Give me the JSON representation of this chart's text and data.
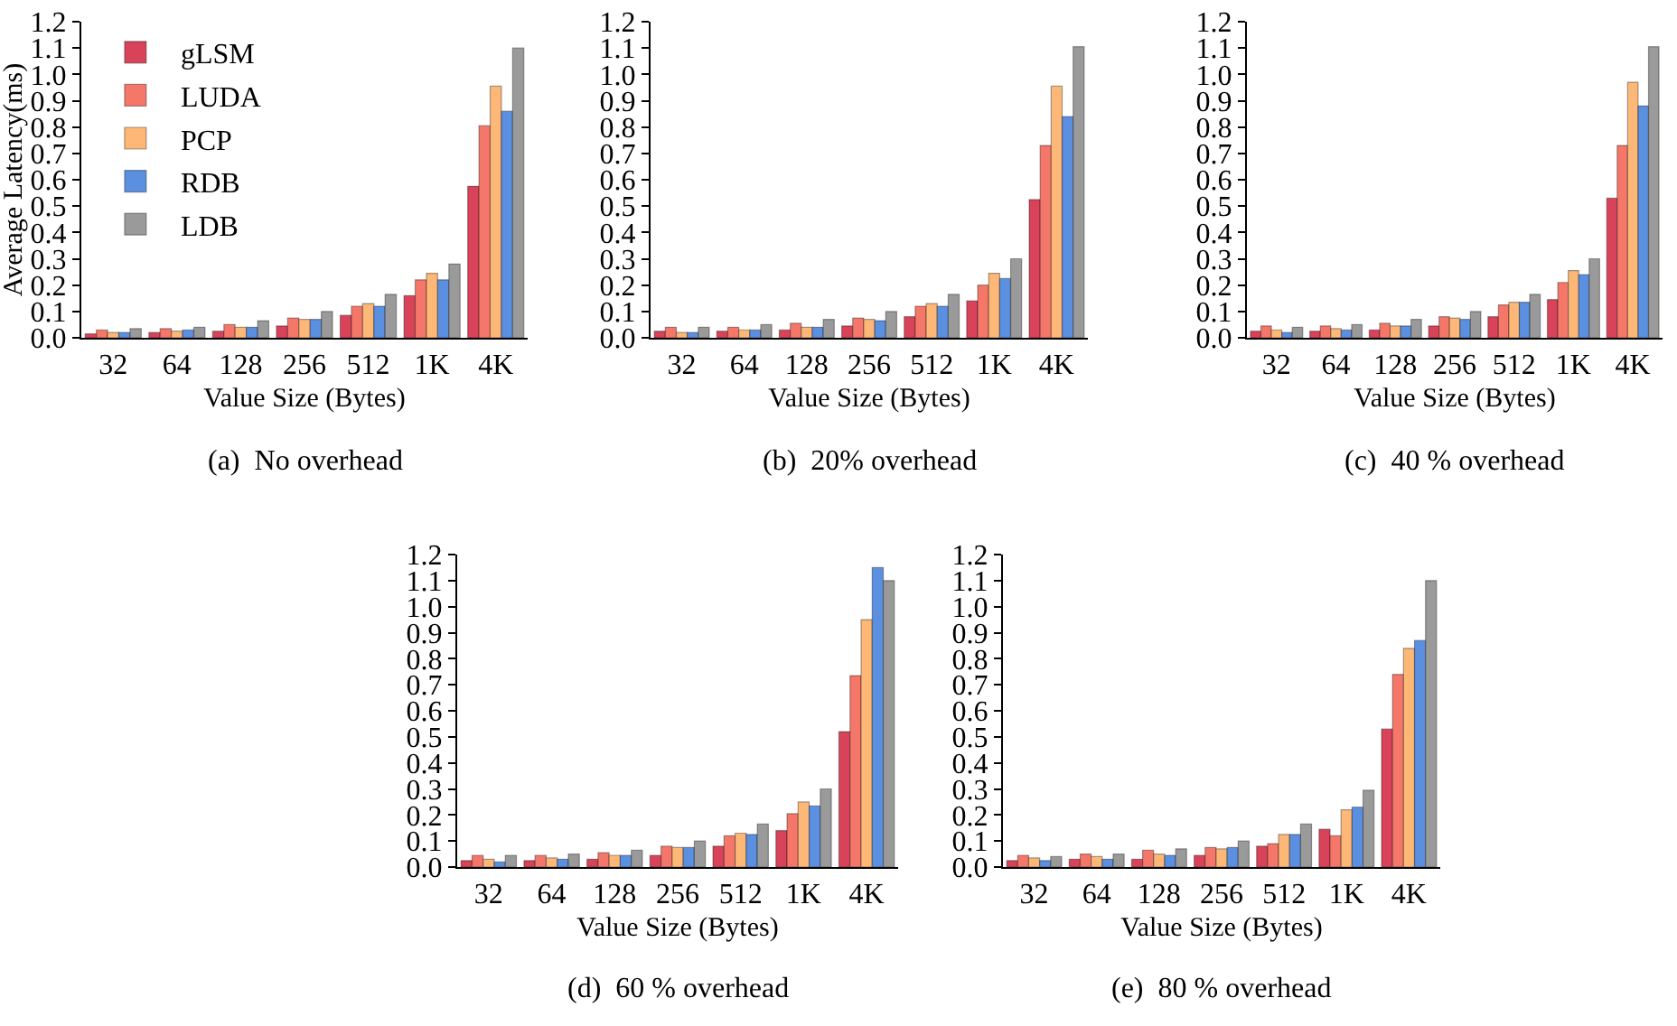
{
  "chart_data": [
    {
      "type": "bar",
      "title": "(a)  No overhead",
      "xlabel": "Value Size (Bytes)",
      "ylabel": "Average Latency(ms)",
      "categories": [
        "32",
        "64",
        "128",
        "256",
        "512",
        "1K",
        "4K"
      ],
      "ylim": [
        0,
        1.2
      ],
      "yticks": [
        {
          "value": 0,
          "label": "0.0"
        },
        {
          "value": 0.1,
          "label": "0.1"
        },
        {
          "value": 0.2,
          "label": "0.2"
        },
        {
          "value": 0.3,
          "label": "0.3"
        },
        {
          "value": 0.4,
          "label": "0.4"
        },
        {
          "value": 0.5,
          "label": "0.5"
        },
        {
          "value": 0.6,
          "label": "0.6"
        },
        {
          "value": 0.7,
          "label": "0.7"
        },
        {
          "value": 0.8,
          "label": "0.8"
        },
        {
          "value": 0.9,
          "label": "0.9"
        },
        {
          "value": 1,
          "label": "1.0"
        },
        {
          "value": 1.1,
          "label": "1.1"
        },
        {
          "value": 1.2,
          "label": "1.2"
        }
      ],
      "legend": "top left",
      "grid": false,
      "series": [
        {
          "name": "gLSM",
          "color": "#d9435a",
          "values": [
            0.015,
            0.02,
            0.025,
            0.045,
            0.085,
            0.16,
            0.575
          ]
        },
        {
          "name": "LUDA",
          "color": "#f4776a",
          "values": [
            0.03,
            0.035,
            0.05,
            0.075,
            0.12,
            0.22,
            0.805
          ]
        },
        {
          "name": "PCP",
          "color": "#fdb878",
          "values": [
            0.02,
            0.025,
            0.04,
            0.07,
            0.13,
            0.245,
            0.955
          ]
        },
        {
          "name": "RDB",
          "color": "#5b8fe0",
          "values": [
            0.02,
            0.03,
            0.04,
            0.07,
            0.12,
            0.22,
            0.86
          ]
        },
        {
          "name": "LDB",
          "color": "#9a9a9a",
          "values": [
            0.035,
            0.04,
            0.065,
            0.1,
            0.165,
            0.28,
            1.1
          ]
        }
      ]
    },
    {
      "type": "bar",
      "title": "(b)  20% overhead",
      "xlabel": "Value Size (Bytes)",
      "categories": [
        "32",
        "64",
        "128",
        "256",
        "512",
        "1K",
        "4K"
      ],
      "ylim": [
        0,
        1.2
      ],
      "yticks": [
        {
          "value": 0,
          "label": "0.0"
        },
        {
          "value": 0.1,
          "label": "0.1"
        },
        {
          "value": 0.2,
          "label": "0.2"
        },
        {
          "value": 0.3,
          "label": "0.3"
        },
        {
          "value": 0.4,
          "label": "0.4"
        },
        {
          "value": 0.5,
          "label": "0.5"
        },
        {
          "value": 0.6,
          "label": "0.6"
        },
        {
          "value": 0.7,
          "label": "0.7"
        },
        {
          "value": 0.8,
          "label": "0.8"
        },
        {
          "value": 0.9,
          "label": "0.9"
        },
        {
          "value": 1,
          "label": "1.0"
        },
        {
          "value": 1.1,
          "label": "1.1"
        },
        {
          "value": 1.2,
          "label": "1.2"
        }
      ],
      "legend": false,
      "grid": false,
      "series": [
        {
          "color": "#d9435a",
          "values": [
            0.025,
            0.025,
            0.03,
            0.045,
            0.08,
            0.14,
            0.525
          ]
        },
        {
          "color": "#f4776a",
          "values": [
            0.04,
            0.04,
            0.055,
            0.075,
            0.12,
            0.2,
            0.73
          ]
        },
        {
          "color": "#fdb878",
          "values": [
            0.02,
            0.03,
            0.04,
            0.07,
            0.13,
            0.245,
            0.955
          ]
        },
        {
          "color": "#5b8fe0",
          "values": [
            0.02,
            0.03,
            0.04,
            0.065,
            0.12,
            0.225,
            0.84
          ]
        },
        {
          "color": "#9a9a9a",
          "values": [
            0.04,
            0.05,
            0.07,
            0.1,
            0.165,
            0.3,
            1.105
          ]
        }
      ]
    },
    {
      "type": "bar",
      "title": "(c)  40 % overhead",
      "xlabel": "Value Size (Bytes)",
      "categories": [
        "32",
        "64",
        "128",
        "256",
        "512",
        "1K",
        "4K"
      ],
      "ylim": [
        0,
        1.2
      ],
      "yticks": [
        {
          "value": 0,
          "label": "0.0"
        },
        {
          "value": 0.1,
          "label": "0.1"
        },
        {
          "value": 0.2,
          "label": "0.2"
        },
        {
          "value": 0.3,
          "label": "0.3"
        },
        {
          "value": 0.4,
          "label": "0.4"
        },
        {
          "value": 0.5,
          "label": "0.5"
        },
        {
          "value": 0.6,
          "label": "0.6"
        },
        {
          "value": 0.7,
          "label": "0.7"
        },
        {
          "value": 0.8,
          "label": "0.8"
        },
        {
          "value": 0.9,
          "label": "0.9"
        },
        {
          "value": 1,
          "label": "1.0"
        },
        {
          "value": 1.1,
          "label": "1.1"
        },
        {
          "value": 1.2,
          "label": "1.2"
        }
      ],
      "legend": false,
      "grid": false,
      "series": [
        {
          "color": "#d9435a",
          "values": [
            0.025,
            0.025,
            0.03,
            0.045,
            0.08,
            0.145,
            0.53
          ]
        },
        {
          "color": "#f4776a",
          "values": [
            0.045,
            0.045,
            0.055,
            0.08,
            0.125,
            0.21,
            0.73
          ]
        },
        {
          "color": "#fdb878",
          "values": [
            0.03,
            0.035,
            0.045,
            0.075,
            0.135,
            0.255,
            0.97
          ]
        },
        {
          "color": "#5b8fe0",
          "values": [
            0.02,
            0.03,
            0.045,
            0.07,
            0.135,
            0.24,
            0.88
          ]
        },
        {
          "color": "#9a9a9a",
          "values": [
            0.04,
            0.05,
            0.07,
            0.1,
            0.165,
            0.3,
            1.105
          ]
        }
      ]
    },
    {
      "type": "bar",
      "title": "(d)  60 % overhead",
      "xlabel": "Value Size (Bytes)",
      "categories": [
        "32",
        "64",
        "128",
        "256",
        "512",
        "1K",
        "4K"
      ],
      "ylim": [
        0,
        1.2
      ],
      "yticks": [
        {
          "value": 0,
          "label": "0.0"
        },
        {
          "value": 0.1,
          "label": "0.1"
        },
        {
          "value": 0.2,
          "label": "0.2"
        },
        {
          "value": 0.3,
          "label": "0.3"
        },
        {
          "value": 0.4,
          "label": "0.4"
        },
        {
          "value": 0.5,
          "label": "0.5"
        },
        {
          "value": 0.6,
          "label": "0.6"
        },
        {
          "value": 0.7,
          "label": "0.7"
        },
        {
          "value": 0.8,
          "label": "0.8"
        },
        {
          "value": 0.9,
          "label": "0.9"
        },
        {
          "value": 1,
          "label": "1.0"
        },
        {
          "value": 1.1,
          "label": "1.1"
        },
        {
          "value": 1.2,
          "label": "1.2"
        }
      ],
      "legend": false,
      "grid": false,
      "series": [
        {
          "color": "#d9435a",
          "values": [
            0.025,
            0.025,
            0.03,
            0.045,
            0.08,
            0.14,
            0.52
          ]
        },
        {
          "color": "#f4776a",
          "values": [
            0.045,
            0.045,
            0.055,
            0.08,
            0.12,
            0.205,
            0.735
          ]
        },
        {
          "color": "#fdb878",
          "values": [
            0.03,
            0.035,
            0.045,
            0.075,
            0.13,
            0.25,
            0.95
          ]
        },
        {
          "color": "#5b8fe0",
          "values": [
            0.02,
            0.03,
            0.045,
            0.075,
            0.125,
            0.235,
            1.15
          ]
        },
        {
          "color": "#9a9a9a",
          "values": [
            0.045,
            0.05,
            0.065,
            0.1,
            0.165,
            0.3,
            1.1
          ]
        }
      ]
    },
    {
      "type": "bar",
      "title": "(e)  80 % overhead",
      "xlabel": "Value Size (Bytes)",
      "categories": [
        "32",
        "64",
        "128",
        "256",
        "512",
        "1K",
        "4K"
      ],
      "ylim": [
        0,
        1.2
      ],
      "yticks": [
        {
          "value": 0,
          "label": "0.0"
        },
        {
          "value": 0.1,
          "label": "0.1"
        },
        {
          "value": 0.2,
          "label": "0.2"
        },
        {
          "value": 0.3,
          "label": "0.3"
        },
        {
          "value": 0.4,
          "label": "0.4"
        },
        {
          "value": 0.5,
          "label": "0.5"
        },
        {
          "value": 0.6,
          "label": "0.6"
        },
        {
          "value": 0.7,
          "label": "0.7"
        },
        {
          "value": 0.8,
          "label": "0.8"
        },
        {
          "value": 0.9,
          "label": "0.9"
        },
        {
          "value": 1,
          "label": "1.0"
        },
        {
          "value": 1.1,
          "label": "1.1"
        },
        {
          "value": 1.2,
          "label": "1.2"
        }
      ],
      "legend": false,
      "grid": false,
      "series": [
        {
          "color": "#d9435a",
          "values": [
            0.025,
            0.03,
            0.03,
            0.045,
            0.08,
            0.145,
            0.53
          ]
        },
        {
          "color": "#f4776a",
          "values": [
            0.045,
            0.05,
            0.065,
            0.075,
            0.09,
            0.12,
            0.74
          ]
        },
        {
          "color": "#fdb878",
          "values": [
            0.035,
            0.04,
            0.05,
            0.07,
            0.125,
            0.22,
            0.84
          ]
        },
        {
          "color": "#5b8fe0",
          "values": [
            0.025,
            0.03,
            0.045,
            0.075,
            0.125,
            0.23,
            0.87
          ]
        },
        {
          "color": "#9a9a9a",
          "values": [
            0.04,
            0.05,
            0.07,
            0.1,
            0.165,
            0.295,
            1.1
          ]
        }
      ]
    }
  ]
}
